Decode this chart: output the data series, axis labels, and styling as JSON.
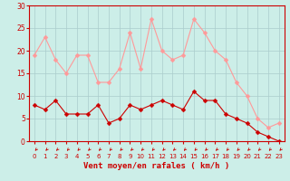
{
  "x": [
    0,
    1,
    2,
    3,
    4,
    5,
    6,
    7,
    8,
    9,
    10,
    11,
    12,
    13,
    14,
    15,
    16,
    17,
    18,
    19,
    20,
    21,
    22,
    23
  ],
  "wind_avg": [
    8,
    7,
    9,
    6,
    6,
    6,
    8,
    4,
    5,
    8,
    7,
    8,
    9,
    8,
    7,
    11,
    9,
    9,
    6,
    5,
    4,
    2,
    1,
    0
  ],
  "wind_gust": [
    19,
    23,
    18,
    15,
    19,
    19,
    13,
    13,
    16,
    24,
    16,
    27,
    20,
    18,
    19,
    27,
    24,
    20,
    18,
    13,
    10,
    5,
    3,
    4
  ],
  "avg_color": "#cc0000",
  "gust_color": "#ff9999",
  "bg_color": "#cceee8",
  "grid_color": "#aacccc",
  "ylim": [
    0,
    30
  ],
  "yticks": [
    0,
    5,
    10,
    15,
    20,
    25,
    30
  ],
  "xlabel": "Vent moyen/en rafales ( km/h )",
  "axis_color": "#cc0000",
  "tick_label_color": "#cc0000"
}
